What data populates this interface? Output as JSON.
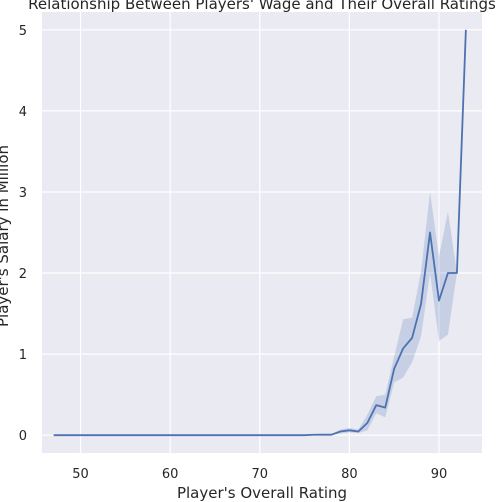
{
  "chart_data": {
    "type": "line",
    "title": "Relationship Between Players' Wage and Their Overall Ratings",
    "xlabel": "Player's Overall Rating",
    "ylabel": "Player's Salary in Million",
    "xlim": [
      45.7,
      94.8
    ],
    "ylim": [
      -0.22,
      5.22
    ],
    "xticks": [
      50,
      60,
      70,
      80,
      90
    ],
    "yticks": [
      0,
      1,
      2,
      3,
      4,
      5
    ],
    "grid": true,
    "background": "#eaeaf2",
    "line_color": "#4c72b0",
    "band_color": "#4c72b0",
    "series": [
      {
        "x": [
          47,
          48,
          49,
          50,
          51,
          52,
          53,
          54,
          55,
          56,
          57,
          58,
          59,
          60,
          61,
          62,
          63,
          64,
          65,
          66,
          67,
          68,
          69,
          70,
          71,
          72,
          73,
          74,
          75,
          76,
          77,
          78,
          79,
          80,
          81,
          82,
          83,
          84,
          85,
          86,
          87,
          88,
          89,
          90,
          91,
          92,
          93
        ],
        "y": [
          0,
          0,
          0,
          0,
          0,
          0,
          0,
          0,
          0,
          0,
          0,
          0,
          0,
          0,
          0,
          0,
          0,
          0,
          0,
          0,
          0,
          0,
          0,
          0,
          0,
          0,
          0,
          0,
          0,
          0.005,
          0.007,
          0.006,
          0.045,
          0.06,
          0.045,
          0.15,
          0.37,
          0.34,
          0.82,
          1.07,
          1.2,
          1.62,
          2.5,
          1.66,
          2.0,
          2.0,
          5.0
        ],
        "lower": [
          0,
          0,
          0,
          0,
          0,
          0,
          0,
          0,
          0,
          0,
          0,
          0,
          0,
          0,
          0,
          0,
          0,
          0,
          0,
          0,
          0,
          0,
          0,
          0,
          0,
          0,
          0,
          0,
          0,
          0.002,
          0.004,
          0.003,
          0.02,
          0.035,
          0.025,
          0.06,
          0.27,
          0.22,
          0.65,
          0.71,
          0.9,
          1.22,
          2.0,
          1.16,
          1.24,
          2.0,
          5.0
        ],
        "upper": [
          0,
          0,
          0,
          0,
          0,
          0,
          0,
          0,
          0,
          0,
          0,
          0,
          0,
          0,
          0,
          0,
          0,
          0,
          0,
          0,
          0,
          0,
          0,
          0,
          0,
          0,
          0,
          0,
          0,
          0.008,
          0.01,
          0.009,
          0.07,
          0.09,
          0.07,
          0.25,
          0.48,
          0.5,
          0.97,
          1.43,
          1.45,
          2.02,
          3.0,
          2.2,
          2.76,
          2.0,
          5.0
        ]
      }
    ]
  }
}
